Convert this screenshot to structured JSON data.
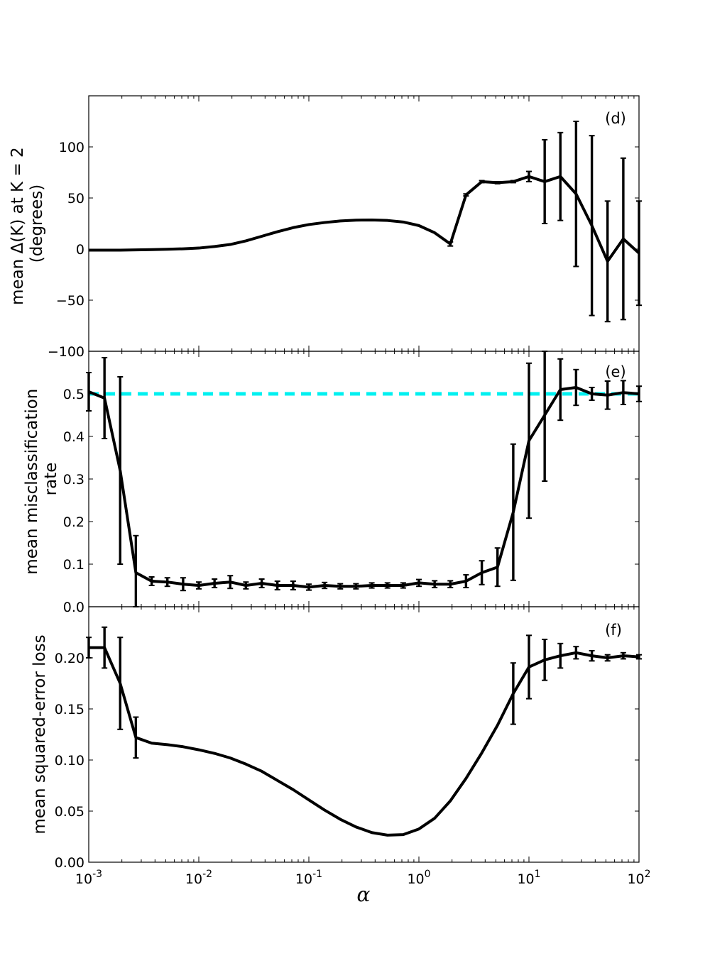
{
  "chart_data": [
    {
      "panel": "(d)",
      "type": "line",
      "xscale": "log",
      "xlim": [
        0.001,
        100
      ],
      "ylim": [
        -100,
        150
      ],
      "yticks": [
        -100,
        -50,
        0,
        50,
        100
      ],
      "yticklabels": [
        "−100",
        "−50",
        "0",
        "50",
        "100"
      ],
      "ylabel_lines": [
        "mean Δ(K) at K = 2",
        "(degrees)"
      ],
      "xlabel": "",
      "reference": null,
      "series": [
        {
          "name": "mean Δ(K)",
          "x": [
            0.001,
            0.00139,
            0.00193,
            0.00268,
            0.00373,
            0.00518,
            0.0072,
            0.01,
            0.0139,
            0.0193,
            0.0268,
            0.0373,
            0.0518,
            0.072,
            0.1,
            0.139,
            0.193,
            0.268,
            0.373,
            0.518,
            0.72,
            1.0,
            1.39,
            1.93,
            2.68,
            3.73,
            5.18,
            7.2,
            10,
            13.9,
            19.3,
            26.8,
            37.3,
            51.8,
            72,
            100
          ],
          "y": [
            -1,
            -1,
            -1,
            -0.8,
            -0.5,
            -0.2,
            0.3,
            1,
            2.5,
            4.5,
            8,
            12.5,
            17,
            21,
            24,
            26,
            27.5,
            28.3,
            28.5,
            28,
            26.5,
            23,
            16,
            5,
            53,
            66,
            65,
            66,
            71,
            66,
            71,
            54,
            23,
            -12,
            10,
            -4
          ],
          "err": [
            0,
            0,
            0,
            0,
            0,
            0,
            0,
            0,
            0,
            0,
            0,
            0,
            0,
            0,
            0,
            0,
            0,
            0,
            0,
            0,
            0,
            0,
            0,
            2,
            1,
            1,
            1,
            1,
            5,
            41,
            43,
            71,
            88,
            59,
            79,
            51
          ]
        }
      ]
    },
    {
      "panel": "(e)",
      "type": "line",
      "xscale": "log",
      "xlim": [
        0.001,
        100
      ],
      "ylim": [
        0,
        0.6
      ],
      "yticks": [
        0,
        0.1,
        0.2,
        0.3,
        0.4,
        0.5
      ],
      "yticklabels": [
        "0.0",
        "0.1",
        "0.2",
        "0.3",
        "0.4",
        "0.5"
      ],
      "ylabel_lines": [
        "mean misclassification",
        "rate"
      ],
      "xlabel": "",
      "reference": {
        "y": 0.5,
        "color": "#00f0f0",
        "style": "dashed"
      },
      "series": [
        {
          "name": "mean misclassification rate",
          "x": [
            0.001,
            0.00139,
            0.00193,
            0.00268,
            0.00373,
            0.00518,
            0.0072,
            0.01,
            0.0139,
            0.0193,
            0.0268,
            0.0373,
            0.0518,
            0.072,
            0.1,
            0.139,
            0.193,
            0.268,
            0.373,
            0.518,
            0.72,
            1.0,
            1.39,
            1.93,
            2.68,
            3.73,
            5.18,
            7.2,
            10,
            13.9,
            19.3,
            26.8,
            37.3,
            51.8,
            72,
            100
          ],
          "y": [
            0.505,
            0.49,
            0.32,
            0.08,
            0.06,
            0.058,
            0.053,
            0.05,
            0.055,
            0.058,
            0.05,
            0.055,
            0.05,
            0.05,
            0.046,
            0.05,
            0.048,
            0.048,
            0.05,
            0.05,
            0.05,
            0.056,
            0.053,
            0.053,
            0.06,
            0.08,
            0.093,
            0.222,
            0.39,
            0.45,
            0.51,
            0.515,
            0.5,
            0.497,
            0.503,
            0.5
          ],
          "err": [
            0.045,
            0.095,
            0.22,
            0.087,
            0.01,
            0.01,
            0.015,
            0.008,
            0.01,
            0.015,
            0.008,
            0.01,
            0.01,
            0.01,
            0.007,
            0.007,
            0.006,
            0.006,
            0.006,
            0.006,
            0.006,
            0.008,
            0.008,
            0.008,
            0.015,
            0.028,
            0.045,
            0.16,
            0.182,
            0.155,
            0.072,
            0.042,
            0.015,
            0.033,
            0.028,
            0.018
          ]
        }
      ]
    },
    {
      "panel": "(f)",
      "type": "line",
      "xscale": "log",
      "xlim": [
        0.001,
        100
      ],
      "ylim": [
        0,
        0.25
      ],
      "yticks": [
        0,
        0.05,
        0.1,
        0.15,
        0.2
      ],
      "yticklabels": [
        "0.00",
        "0.05",
        "0.10",
        "0.15",
        "0.20"
      ],
      "ylabel_lines": [
        "mean squared-error loss"
      ],
      "xlabel": "α",
      "xticklabels": [
        {
          "base": "10",
          "exp": "-3"
        },
        {
          "base": "10",
          "exp": "-2"
        },
        {
          "base": "10",
          "exp": "-1"
        },
        {
          "base": "10",
          "exp": "0"
        },
        {
          "base": "10",
          "exp": "1"
        },
        {
          "base": "10",
          "exp": "2"
        }
      ],
      "reference": null,
      "series": [
        {
          "name": "mean squared-error loss",
          "x": [
            0.001,
            0.00139,
            0.00193,
            0.00268,
            0.00373,
            0.00518,
            0.0072,
            0.01,
            0.0139,
            0.0193,
            0.0268,
            0.0373,
            0.0518,
            0.072,
            0.1,
            0.139,
            0.193,
            0.268,
            0.373,
            0.518,
            0.72,
            1.0,
            1.39,
            1.93,
            2.68,
            3.73,
            5.18,
            7.2,
            10,
            13.9,
            19.3,
            26.8,
            37.3,
            51.8,
            72,
            100
          ],
          "y": [
            0.21,
            0.21,
            0.175,
            0.122,
            0.1165,
            0.115,
            0.113,
            0.11,
            0.1065,
            0.102,
            0.096,
            0.089,
            0.08,
            0.071,
            0.061,
            0.051,
            0.042,
            0.0345,
            0.029,
            0.0265,
            0.027,
            0.0325,
            0.043,
            0.06,
            0.082,
            0.107,
            0.134,
            0.165,
            0.191,
            0.198,
            0.202,
            0.205,
            0.202,
            0.2,
            0.202,
            0.201
          ],
          "err": [
            0.01,
            0.02,
            0.045,
            0.02,
            0,
            0,
            0,
            0,
            0,
            0,
            0,
            0,
            0,
            0,
            0,
            0,
            0,
            0,
            0,
            0,
            0,
            0,
            0,
            0,
            0,
            0,
            0,
            0.03,
            0.031,
            0.02,
            0.012,
            0.006,
            0.005,
            0.003,
            0.003,
            0.002
          ]
        }
      ]
    }
  ]
}
